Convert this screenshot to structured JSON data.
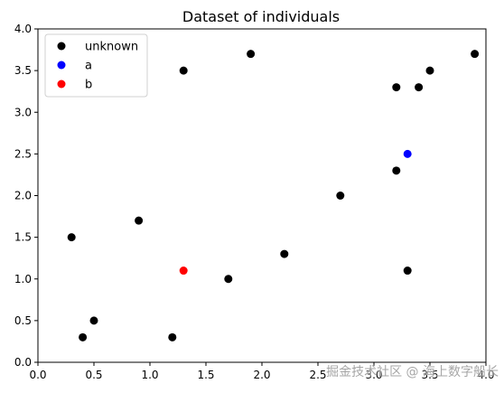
{
  "chart_data": {
    "type": "scatter",
    "title": "Dataset of individuals",
    "xlabel": "",
    "ylabel": "",
    "xlim": [
      0.0,
      4.0
    ],
    "ylim": [
      0.0,
      4.0
    ],
    "xticks": [
      "0.0",
      "0.5",
      "1.0",
      "1.5",
      "2.0",
      "2.5",
      "3.0",
      "3.5",
      "4.0"
    ],
    "yticks": [
      "0.0",
      "0.5",
      "1.0",
      "1.5",
      "2.0",
      "2.5",
      "3.0",
      "3.5",
      "4.0"
    ],
    "grid": false,
    "legend_position": "upper-left",
    "series": [
      {
        "name": "unknown",
        "color": "#000000",
        "points": [
          [
            0.3,
            1.5
          ],
          [
            0.4,
            0.3
          ],
          [
            0.5,
            0.5
          ],
          [
            0.9,
            1.7
          ],
          [
            1.2,
            0.3
          ],
          [
            1.3,
            3.5
          ],
          [
            1.7,
            1.0
          ],
          [
            1.9,
            3.7
          ],
          [
            2.2,
            1.3
          ],
          [
            2.7,
            2.0
          ],
          [
            3.2,
            3.3
          ],
          [
            3.2,
            2.3
          ],
          [
            3.3,
            1.1
          ],
          [
            3.4,
            3.3
          ],
          [
            3.5,
            3.5
          ],
          [
            3.9,
            3.7
          ]
        ]
      },
      {
        "name": "a",
        "color": "#0000ff",
        "points": [
          [
            3.3,
            2.5
          ]
        ]
      },
      {
        "name": "b",
        "color": "#ff0000",
        "points": [
          [
            1.3,
            1.1
          ]
        ]
      }
    ]
  },
  "watermark": "掘金技术社区 @ 海上数字船长"
}
